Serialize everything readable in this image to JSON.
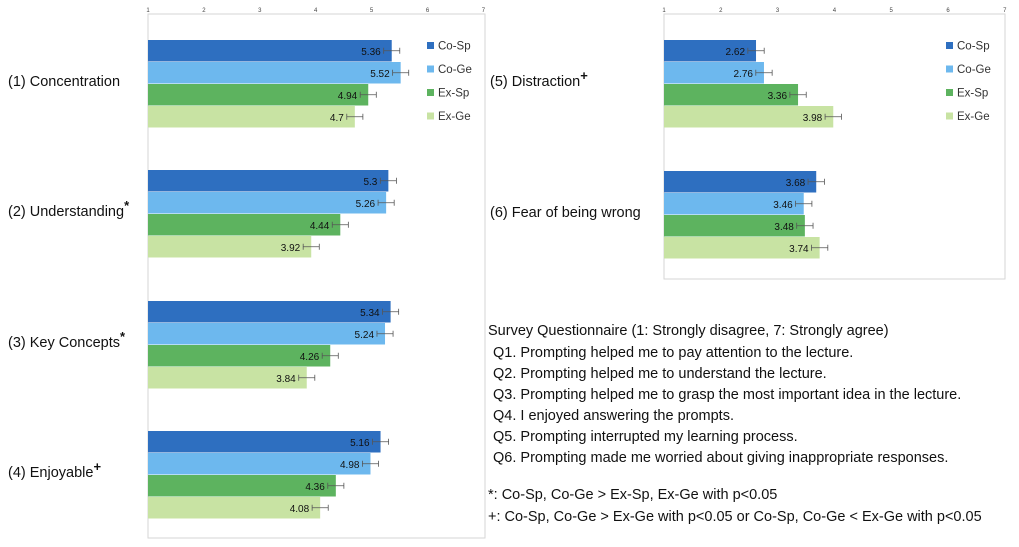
{
  "chart_data": [
    {
      "type": "bar",
      "orientation": "horizontal",
      "xlim": [
        1,
        7
      ],
      "ticks": [
        "1",
        "2",
        "3",
        "4",
        "5",
        "6",
        "7"
      ],
      "legend": "right",
      "series": [
        {
          "name": "Co-Sp",
          "color": "#2e6fc0"
        },
        {
          "name": "Co-Ge",
          "color": "#6db8ee"
        },
        {
          "name": "Ex-Sp",
          "color": "#5db35f"
        },
        {
          "name": "Ex-Ge",
          "color": "#c8e3a3"
        }
      ],
      "groups": [
        {
          "label": "(1) Concentration",
          "mark": "",
          "values": [
            5.36,
            5.52,
            4.94,
            4.7
          ]
        },
        {
          "label": "(2) Understanding",
          "mark": "*",
          "values": [
            5.3,
            5.26,
            4.44,
            3.92
          ]
        },
        {
          "label": "(3) Key Concepts",
          "mark": "*",
          "values": [
            5.34,
            5.24,
            4.26,
            3.84
          ]
        },
        {
          "label": "(4) Enjoyable",
          "mark": "+",
          "values": [
            5.16,
            4.98,
            4.36,
            4.08
          ]
        }
      ]
    },
    {
      "type": "bar",
      "orientation": "horizontal",
      "xlim": [
        1,
        7
      ],
      "ticks": [
        "1",
        "2",
        "3",
        "4",
        "5",
        "6",
        "7"
      ],
      "legend": "right",
      "series": [
        {
          "name": "Co-Sp",
          "color": "#2e6fc0"
        },
        {
          "name": "Co-Ge",
          "color": "#6db8ee"
        },
        {
          "name": "Ex-Sp",
          "color": "#5db35f"
        },
        {
          "name": "Ex-Ge",
          "color": "#c8e3a3"
        }
      ],
      "groups": [
        {
          "label": "(5) Distraction",
          "mark": "+",
          "values": [
            2.62,
            2.76,
            3.36,
            3.98
          ]
        },
        {
          "label": "(6) Fear of being wrong",
          "mark": "",
          "values": [
            3.68,
            3.46,
            3.48,
            3.74
          ]
        }
      ]
    }
  ],
  "survey": {
    "title": "Survey Questionnaire (1: Strongly disagree, 7: Strongly agree)",
    "questions": [
      "Q1. Prompting helped me to pay attention to the lecture.",
      "Q2. Prompting helped me to understand the lecture.",
      "Q3. Prompting helped me to grasp the most important idea in the lecture.",
      "Q4. I enjoyed answering the prompts.",
      "Q5. Prompting interrupted my learning process.",
      "Q6. Prompting made me worried about giving inappropriate responses."
    ],
    "notes": [
      "*: Co-Sp, Co-Ge > Ex-Sp, Ex-Ge with p<0.05",
      "+: Co-Sp, Co-Ge > Ex-Ge with p<0.05 or Co-Sp, Co-Ge < Ex-Ge with p<0.05"
    ]
  }
}
